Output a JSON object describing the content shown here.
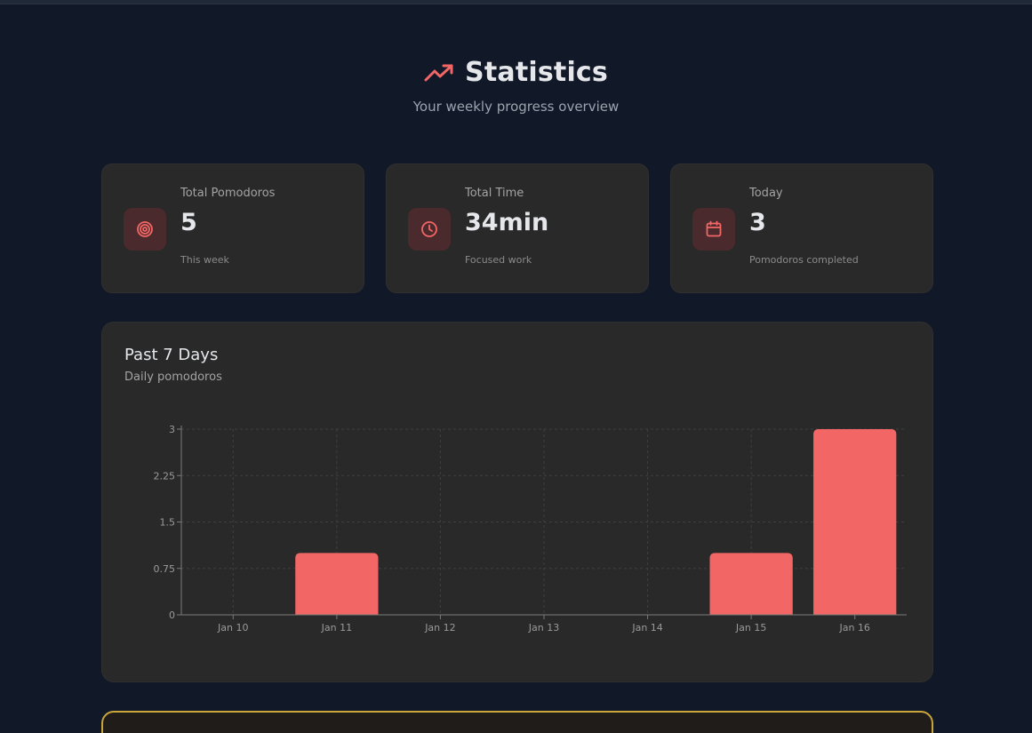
{
  "header": {
    "title": "Statistics",
    "subtitle": "Your weekly progress overview",
    "icon": "trending-up-icon",
    "accent_color": "#f26666"
  },
  "cards": [
    {
      "label": "Total Pomodoros",
      "value": "5",
      "sub": "This week",
      "icon": "target-icon"
    },
    {
      "label": "Total Time",
      "value": "34min",
      "sub": "Focused work",
      "icon": "clock-icon"
    },
    {
      "label": "Today",
      "value": "3",
      "sub": "Pomodoros completed",
      "icon": "calendar-icon"
    }
  ],
  "chart_panel": {
    "title": "Past 7 Days",
    "subtitle": "Daily pomodoros"
  },
  "chart_data": {
    "type": "bar",
    "categories": [
      "Jan 10",
      "Jan 11",
      "Jan 12",
      "Jan 13",
      "Jan 14",
      "Jan 15",
      "Jan 16"
    ],
    "values": [
      0,
      1,
      0,
      0,
      0,
      1,
      3
    ],
    "yticks": [
      "0",
      "0.75",
      "1.5",
      "2.25",
      "3"
    ],
    "ylim": [
      0,
      3
    ],
    "grid": true,
    "bar_color": "#f26666"
  }
}
